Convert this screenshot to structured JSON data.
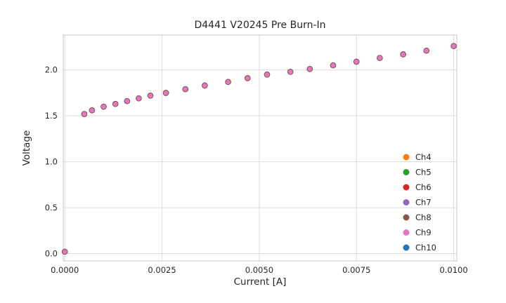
{
  "chart_data": {
    "type": "scatter",
    "title": "D4441 V20245 Pre Burn-In",
    "xlabel": "Current [A]",
    "ylabel": "Voltage",
    "xlim": [
      -4e-05,
      0.01008
    ],
    "ylim": [
      -0.08,
      2.38
    ],
    "grid": true,
    "legend_position": "lower right",
    "xticks": {
      "values": [
        0.0,
        0.0025,
        0.005,
        0.0075,
        0.01
      ],
      "labels": [
        "0.0000",
        "0.0025",
        "0.0050",
        "0.0075",
        "0.0100"
      ]
    },
    "yticks": {
      "values": [
        0.0,
        0.5,
        1.0,
        1.5,
        2.0
      ],
      "labels": [
        "0.0",
        "0.5",
        "1.0",
        "1.5",
        "2.0"
      ]
    },
    "x": [
      0.0,
      0.0005,
      0.0007,
      0.001,
      0.0013,
      0.0016,
      0.0019,
      0.0022,
      0.0026,
      0.0031,
      0.0036,
      0.0042,
      0.0047,
      0.0052,
      0.0058,
      0.0063,
      0.0069,
      0.0075,
      0.0081,
      0.0087,
      0.0093,
      0.01
    ],
    "y_shared": [
      0.02,
      1.52,
      1.56,
      1.6,
      1.63,
      1.66,
      1.69,
      1.72,
      1.75,
      1.79,
      1.83,
      1.87,
      1.91,
      1.95,
      1.98,
      2.01,
      2.05,
      2.09,
      2.13,
      2.17,
      2.21,
      2.26
    ],
    "series": [
      {
        "name": "Ch4",
        "color": "#ff7f0e",
        "z": 1
      },
      {
        "name": "Ch5",
        "color": "#2ca02c",
        "z": 2
      },
      {
        "name": "Ch6",
        "color": "#d62728",
        "z": 3
      },
      {
        "name": "Ch7",
        "color": "#9467bd",
        "z": 4
      },
      {
        "name": "Ch8",
        "color": "#8c564b",
        "z": 6
      },
      {
        "name": "Ch9",
        "color": "#e377c2",
        "z": 7
      },
      {
        "name": "Ch10",
        "color": "#1f77b4",
        "z": 5
      }
    ],
    "colors": {
      "grid": "#dcdcdc",
      "frame": "#c9c9c9",
      "text": "#262626",
      "background": "#ffffff"
    }
  }
}
